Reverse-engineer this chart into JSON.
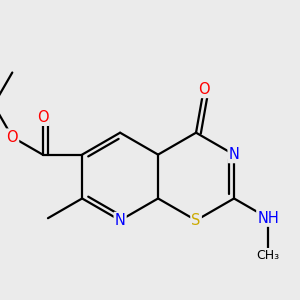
{
  "bg_color": "#ebebeb",
  "atom_colors": {
    "C": "#000000",
    "N": "#0000ff",
    "O": "#ff0000",
    "S": "#ccaa00",
    "H": "#444444"
  },
  "bond_lw": 1.6,
  "font_size_atom": 10.5,
  "font_size_small": 9.0,
  "BL": 0.38
}
